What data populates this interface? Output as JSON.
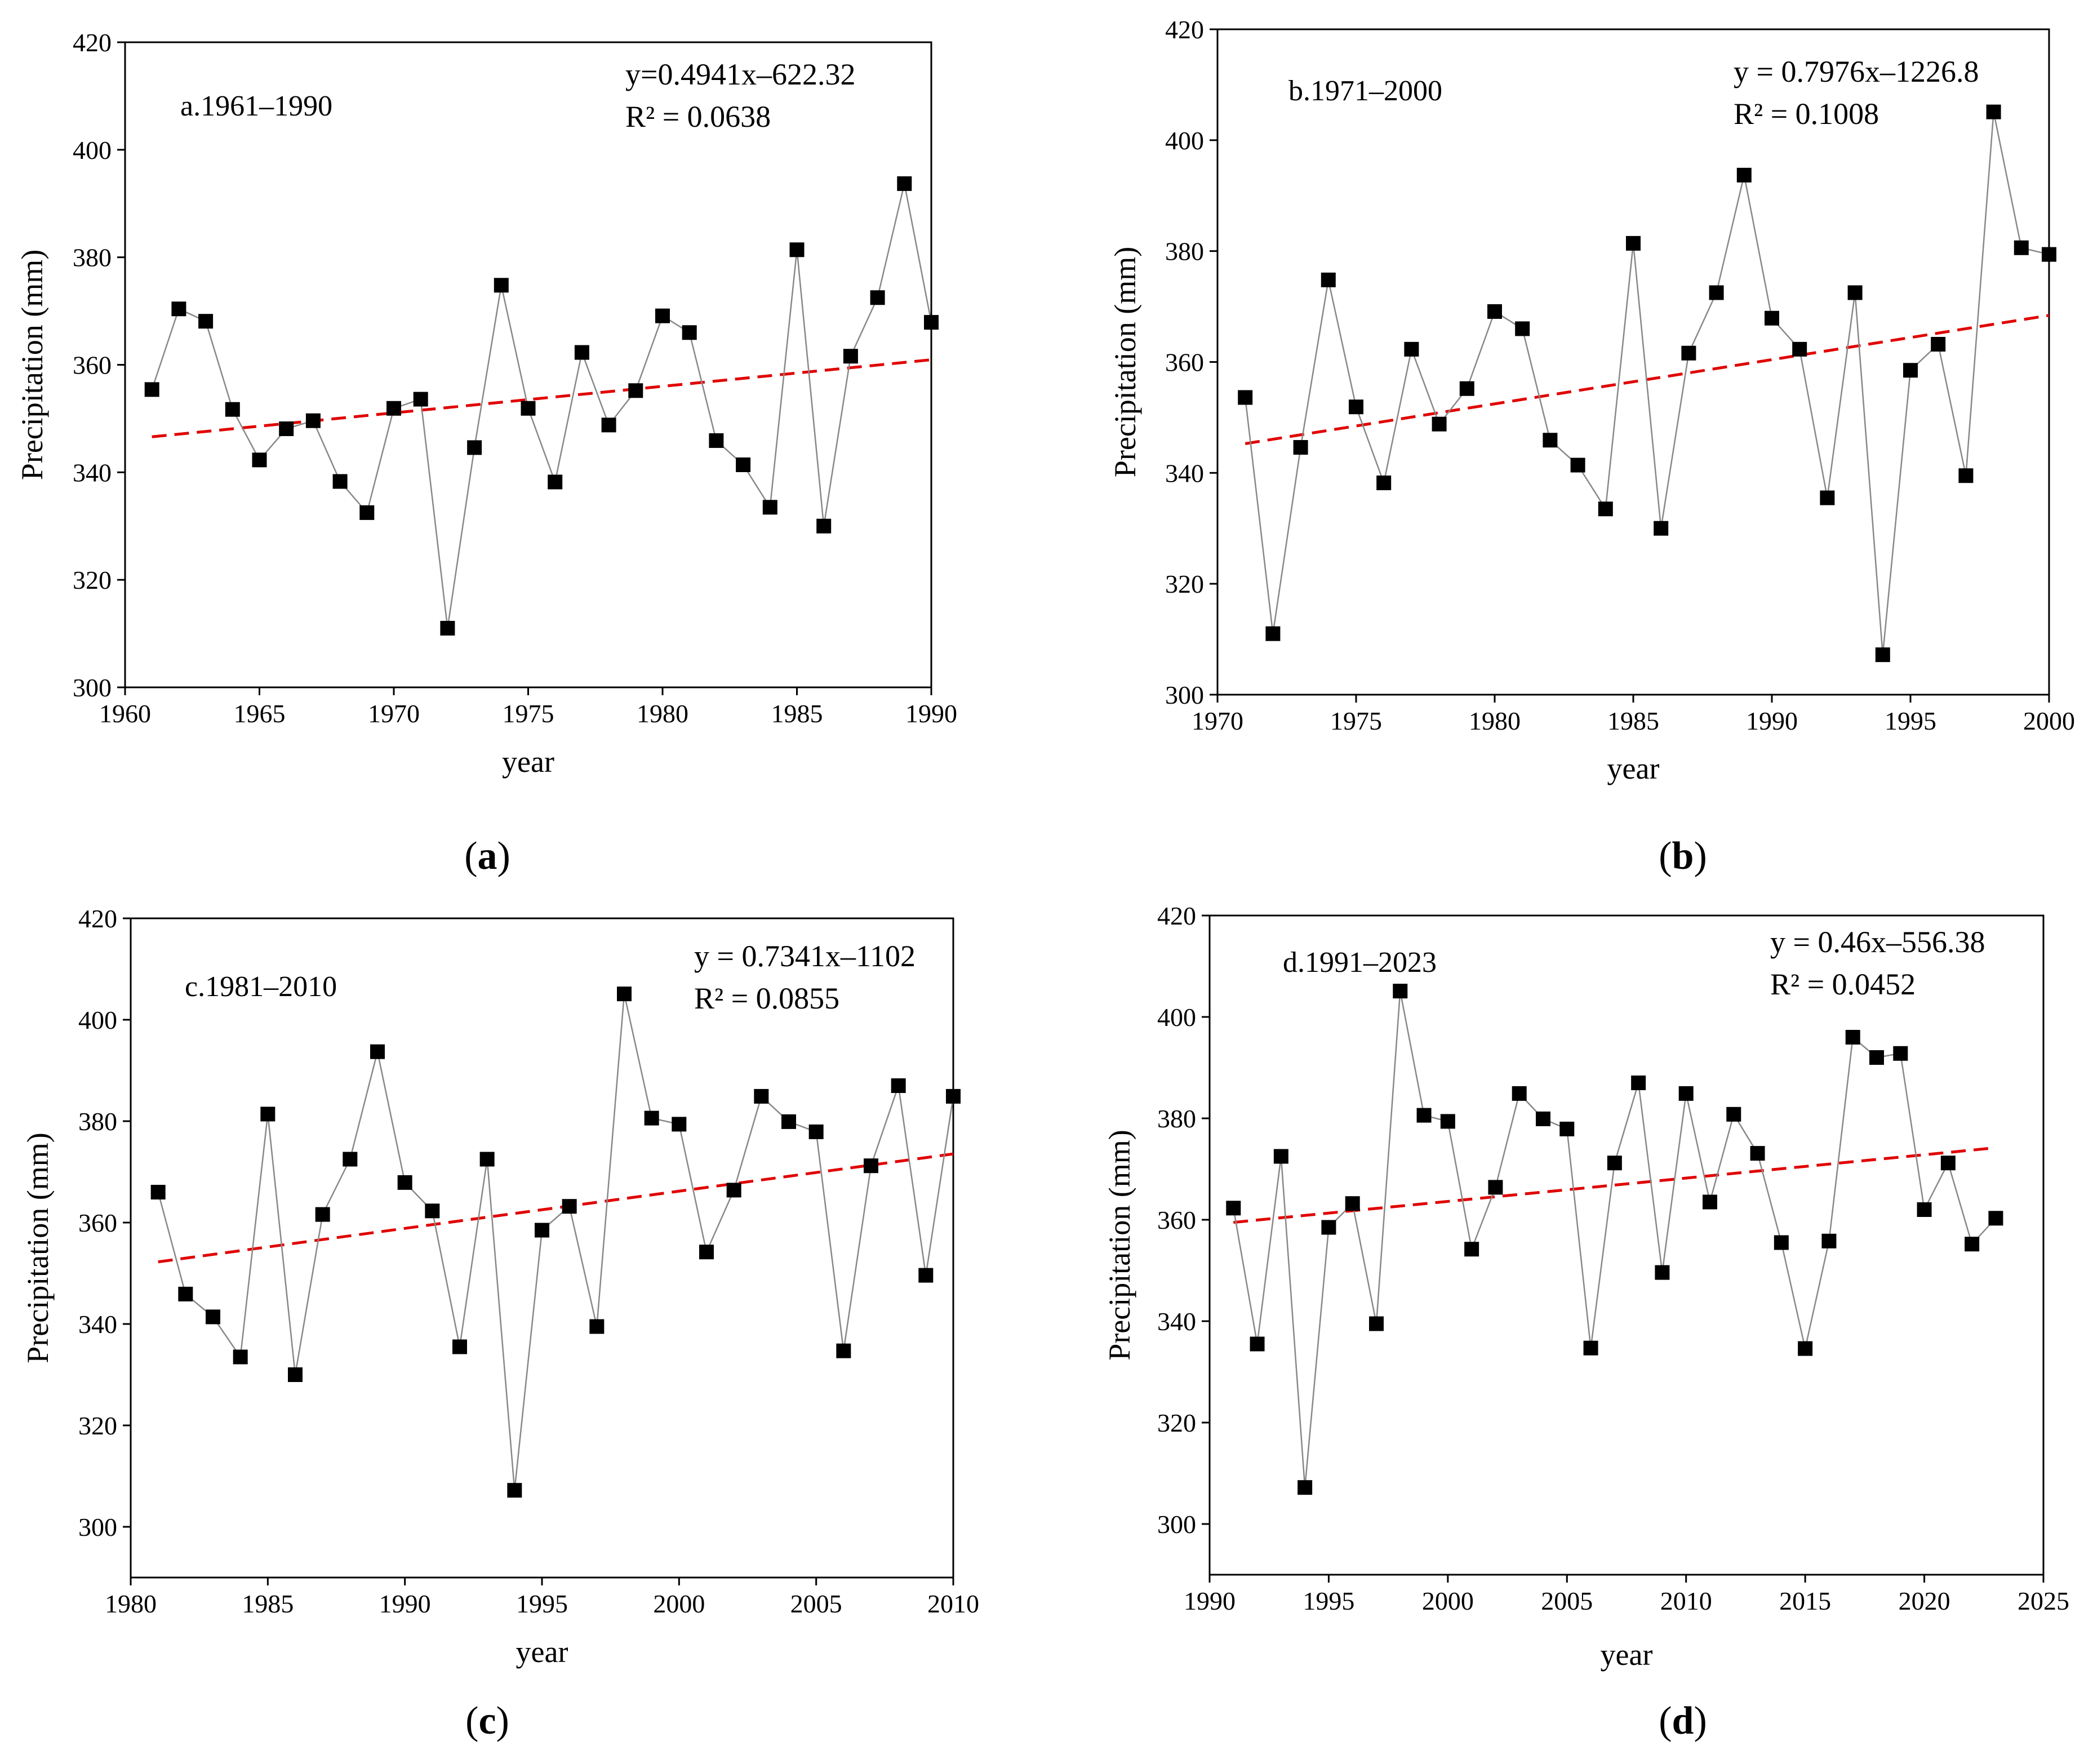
{
  "chart_data": [
    {
      "type": "line",
      "panel": "a",
      "caption": "a",
      "title": "a.1961–1990",
      "equation": "y=0.4941x–622.32",
      "r2": "R² = 0.0638",
      "xlabel": "year",
      "ylabel": "Precipitation (mm)",
      "xlim": [
        1960,
        1990
      ],
      "ylim": [
        300,
        420
      ],
      "xticks": [
        1960,
        1965,
        1970,
        1975,
        1980,
        1985,
        1990
      ],
      "yticks": [
        300,
        320,
        340,
        360,
        380,
        400,
        420
      ],
      "trend": {
        "slope": 0.4941,
        "intercept": -622.32,
        "color": "#e00000"
      },
      "series": [
        {
          "name": "precipitation",
          "x": [
            1961,
            1962,
            1963,
            1964,
            1965,
            1966,
            1967,
            1968,
            1969,
            1970,
            1971,
            1972,
            1973,
            1974,
            1975,
            1976,
            1977,
            1978,
            1979,
            1980,
            1981,
            1982,
            1983,
            1984,
            1985,
            1986,
            1987,
            1988,
            1989,
            1990
          ],
          "values": [
            355.4,
            370.4,
            368.1,
            351.7,
            342.3,
            348.1,
            349.6,
            338.3,
            332.5,
            351.9,
            353.6,
            311.0,
            344.6,
            374.8,
            351.9,
            338.2,
            362.3,
            348.8,
            355.2,
            369.1,
            366.0,
            345.9,
            341.4,
            333.5,
            381.4,
            330.0,
            361.6,
            372.5,
            393.7,
            367.9
          ]
        }
      ]
    },
    {
      "type": "line",
      "panel": "b",
      "caption": "b",
      "title": "b.1971–2000",
      "equation": "y = 0.7976x–1226.8",
      "r2": "R² = 0.1008",
      "xlabel": "year",
      "ylabel": "Precipitation (mm)",
      "xlim": [
        1970,
        2000
      ],
      "ylim": [
        300,
        420
      ],
      "xticks": [
        1970,
        1975,
        1980,
        1985,
        1990,
        1995,
        2000
      ],
      "yticks": [
        300,
        320,
        340,
        360,
        380,
        400,
        420
      ],
      "trend": {
        "slope": 0.7976,
        "intercept": -1226.8,
        "color": "#e00000"
      },
      "series": [
        {
          "name": "precipitation",
          "x": [
            1971,
            1972,
            1973,
            1974,
            1975,
            1976,
            1977,
            1978,
            1979,
            1980,
            1981,
            1982,
            1983,
            1984,
            1985,
            1986,
            1987,
            1988,
            1989,
            1990,
            1991,
            1992,
            1993,
            1994,
            1995,
            1996,
            1997,
            1998,
            1999,
            2000
          ],
          "values": [
            353.6,
            311.0,
            344.6,
            374.8,
            351.9,
            338.2,
            362.3,
            348.8,
            355.2,
            369.1,
            366.0,
            345.9,
            341.4,
            333.5,
            381.4,
            330.0,
            361.6,
            372.5,
            393.7,
            367.9,
            362.3,
            335.5,
            372.5,
            307.2,
            358.5,
            363.2,
            339.5,
            405.1,
            380.6,
            379.4
          ]
        }
      ]
    },
    {
      "type": "line",
      "panel": "c",
      "caption": "c",
      "title": "c.1981–2010",
      "equation": "y = 0.7341x–1102",
      "r2": "R² = 0.0855",
      "xlabel": "year",
      "ylabel": "Precipitation (mm)",
      "xlim": [
        1980,
        2010
      ],
      "ylim": [
        290,
        420
      ],
      "xticks": [
        1980,
        1985,
        1990,
        1995,
        2000,
        2005,
        2010
      ],
      "yticks": [
        300,
        320,
        340,
        360,
        380,
        400,
        420
      ],
      "trend": {
        "slope": 0.7341,
        "intercept": -1102,
        "color": "#e00000"
      },
      "series": [
        {
          "name": "precipitation",
          "x": [
            1981,
            1982,
            1983,
            1984,
            1985,
            1986,
            1987,
            1988,
            1989,
            1990,
            1991,
            1992,
            1993,
            1994,
            1995,
            1996,
            1997,
            1998,
            1999,
            2000,
            2001,
            2002,
            2003,
            2004,
            2005,
            2006,
            2007,
            2008,
            2009,
            2010
          ],
          "values": [
            366.0,
            345.9,
            341.4,
            333.5,
            381.4,
            330.0,
            361.6,
            372.5,
            393.7,
            367.9,
            362.3,
            335.5,
            372.5,
            307.2,
            358.5,
            363.2,
            339.5,
            405.1,
            380.6,
            379.4,
            354.2,
            366.4,
            384.9,
            379.9,
            377.9,
            334.7,
            371.2,
            387.0,
            349.6,
            384.9
          ]
        }
      ]
    },
    {
      "type": "line",
      "panel": "d",
      "caption": "d",
      "title": "d.1991–2023",
      "equation": "y = 0.46x–556.38",
      "r2": "R² = 0.0452",
      "xlabel": "year",
      "ylabel": "Precipitation (mm)",
      "xlim": [
        1990,
        2025
      ],
      "ylim": [
        290,
        420
      ],
      "xticks": [
        1990,
        1995,
        2000,
        2005,
        2010,
        2015,
        2020,
        2025
      ],
      "yticks": [
        300,
        320,
        340,
        360,
        380,
        400,
        420
      ],
      "trend": {
        "slope": 0.46,
        "intercept": -556.38,
        "color": "#e00000"
      },
      "series": [
        {
          "name": "precipitation",
          "x": [
            1991,
            1992,
            1993,
            1994,
            1995,
            1996,
            1997,
            1998,
            1999,
            2000,
            2001,
            2002,
            2003,
            2004,
            2005,
            2006,
            2007,
            2008,
            2009,
            2010,
            2011,
            2012,
            2013,
            2014,
            2015,
            2016,
            2017,
            2018,
            2019,
            2020,
            2021,
            2022,
            2023
          ],
          "values": [
            362.3,
            335.5,
            372.5,
            307.2,
            358.5,
            363.2,
            339.5,
            405.1,
            380.6,
            379.4,
            354.2,
            366.4,
            384.9,
            379.9,
            377.9,
            334.7,
            371.2,
            387.0,
            349.6,
            384.9,
            363.5,
            380.8,
            373.1,
            355.5,
            334.6,
            355.8,
            396.0,
            392.0,
            392.8,
            362.0,
            371.2,
            355.2,
            360.3
          ]
        }
      ]
    }
  ]
}
